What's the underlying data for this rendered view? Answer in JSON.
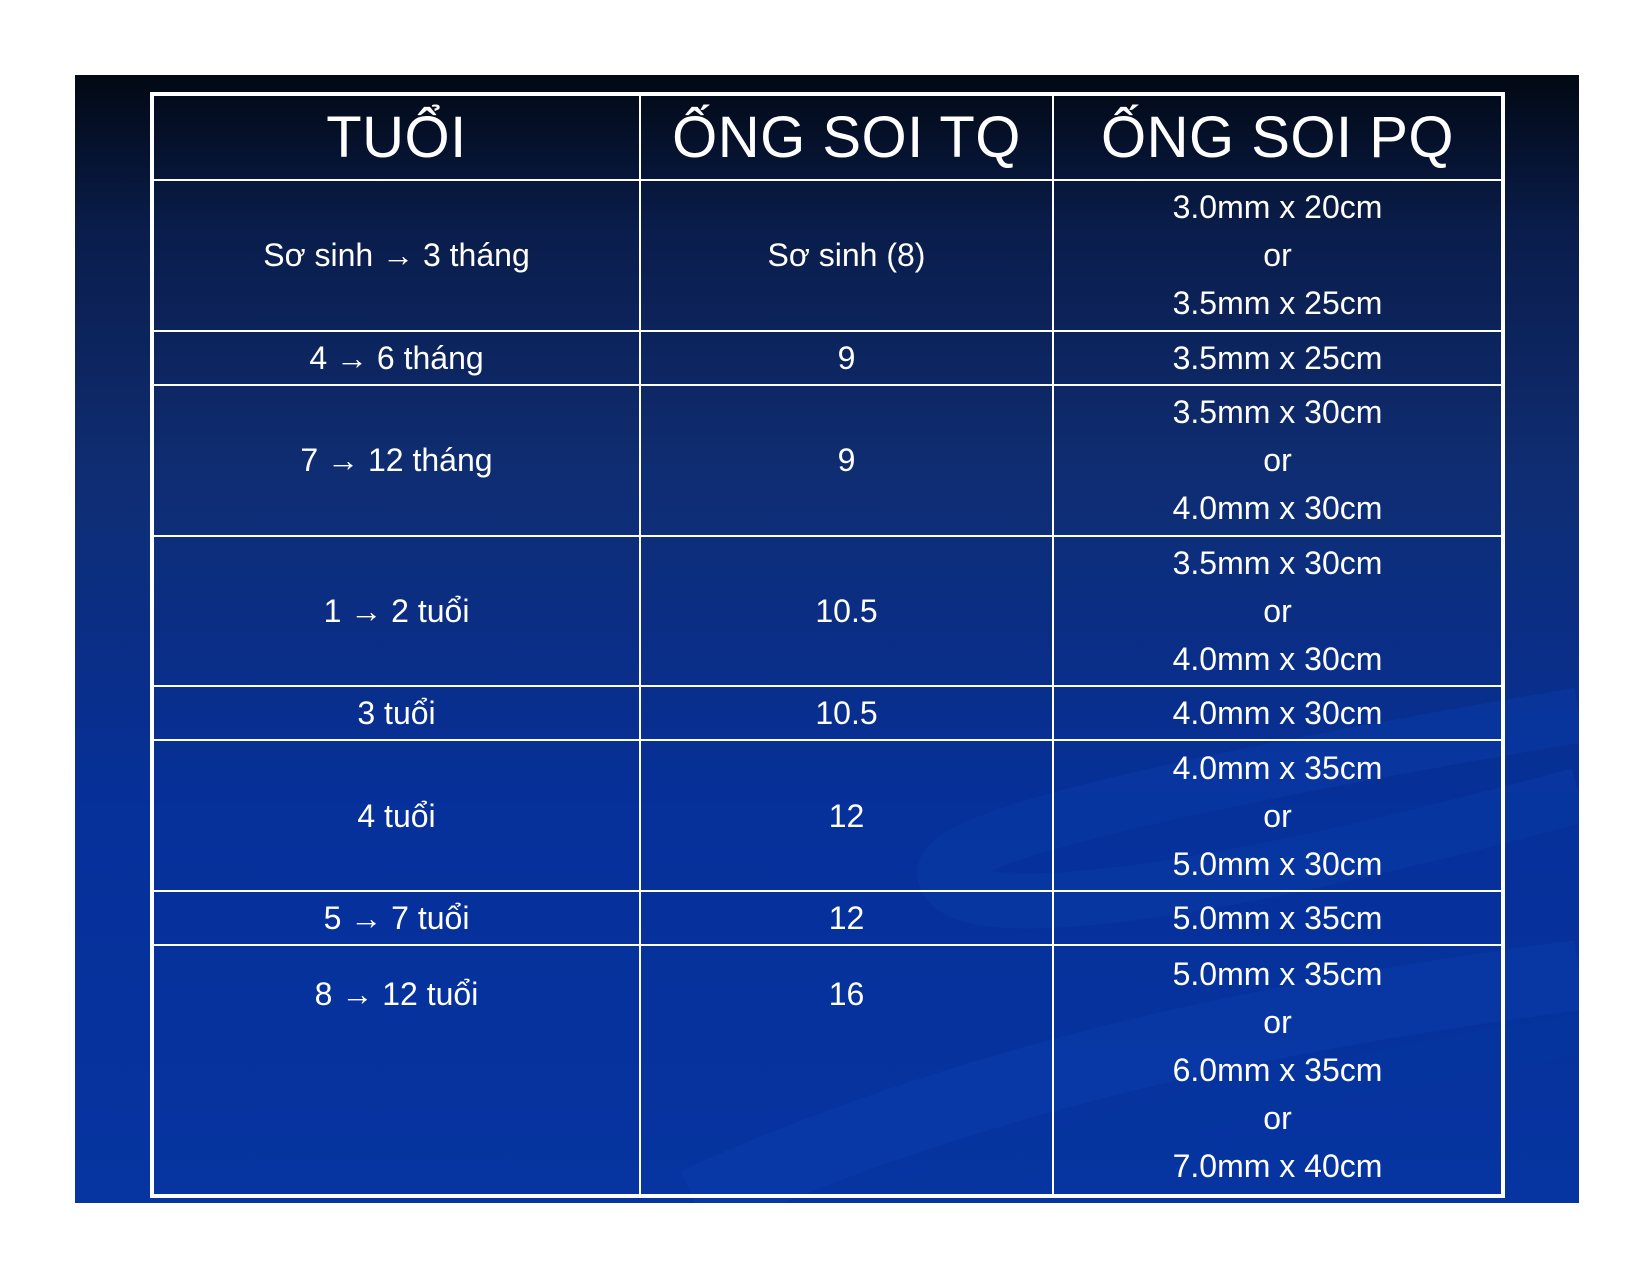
{
  "table": {
    "headers": [
      "TUỔI",
      "ỐNG SOI TQ",
      "ỐNG SOI PQ"
    ],
    "rows": [
      {
        "age": "Sơ sinh → 3 tháng",
        "tq": "Sơ sinh (8)",
        "pq": [
          "3.0mm x 20cm",
          "or",
          "3.5mm x 25cm"
        ]
      },
      {
        "age": "4 → 6 tháng",
        "tq": "9",
        "pq": [
          "3.5mm x 25cm"
        ]
      },
      {
        "age": "7 → 12 tháng",
        "tq": "9",
        "pq": [
          "3.5mm x 30cm",
          "or",
          "4.0mm x 30cm"
        ]
      },
      {
        "age": "1 → 2 tuổi",
        "tq": "10.5",
        "pq": [
          "3.5mm x 30cm",
          "or",
          "4.0mm x 30cm"
        ]
      },
      {
        "age": "3 tuổi",
        "tq": "10.5",
        "pq": [
          "4.0mm x 30cm"
        ]
      },
      {
        "age": "4 tuổi",
        "tq": "12",
        "pq": [
          "4.0mm x 35cm",
          "or",
          "5.0mm x 30cm"
        ]
      },
      {
        "age": "5 → 7 tuổi",
        "tq": "12",
        "pq": [
          "5.0mm x 35cm"
        ]
      },
      {
        "age": "8 → 12 tuổi",
        "tq": "16",
        "pq": [
          "5.0mm x 35cm",
          "or",
          "6.0mm x 35cm",
          "or",
          "7.0mm x 40cm"
        ]
      }
    ]
  }
}
